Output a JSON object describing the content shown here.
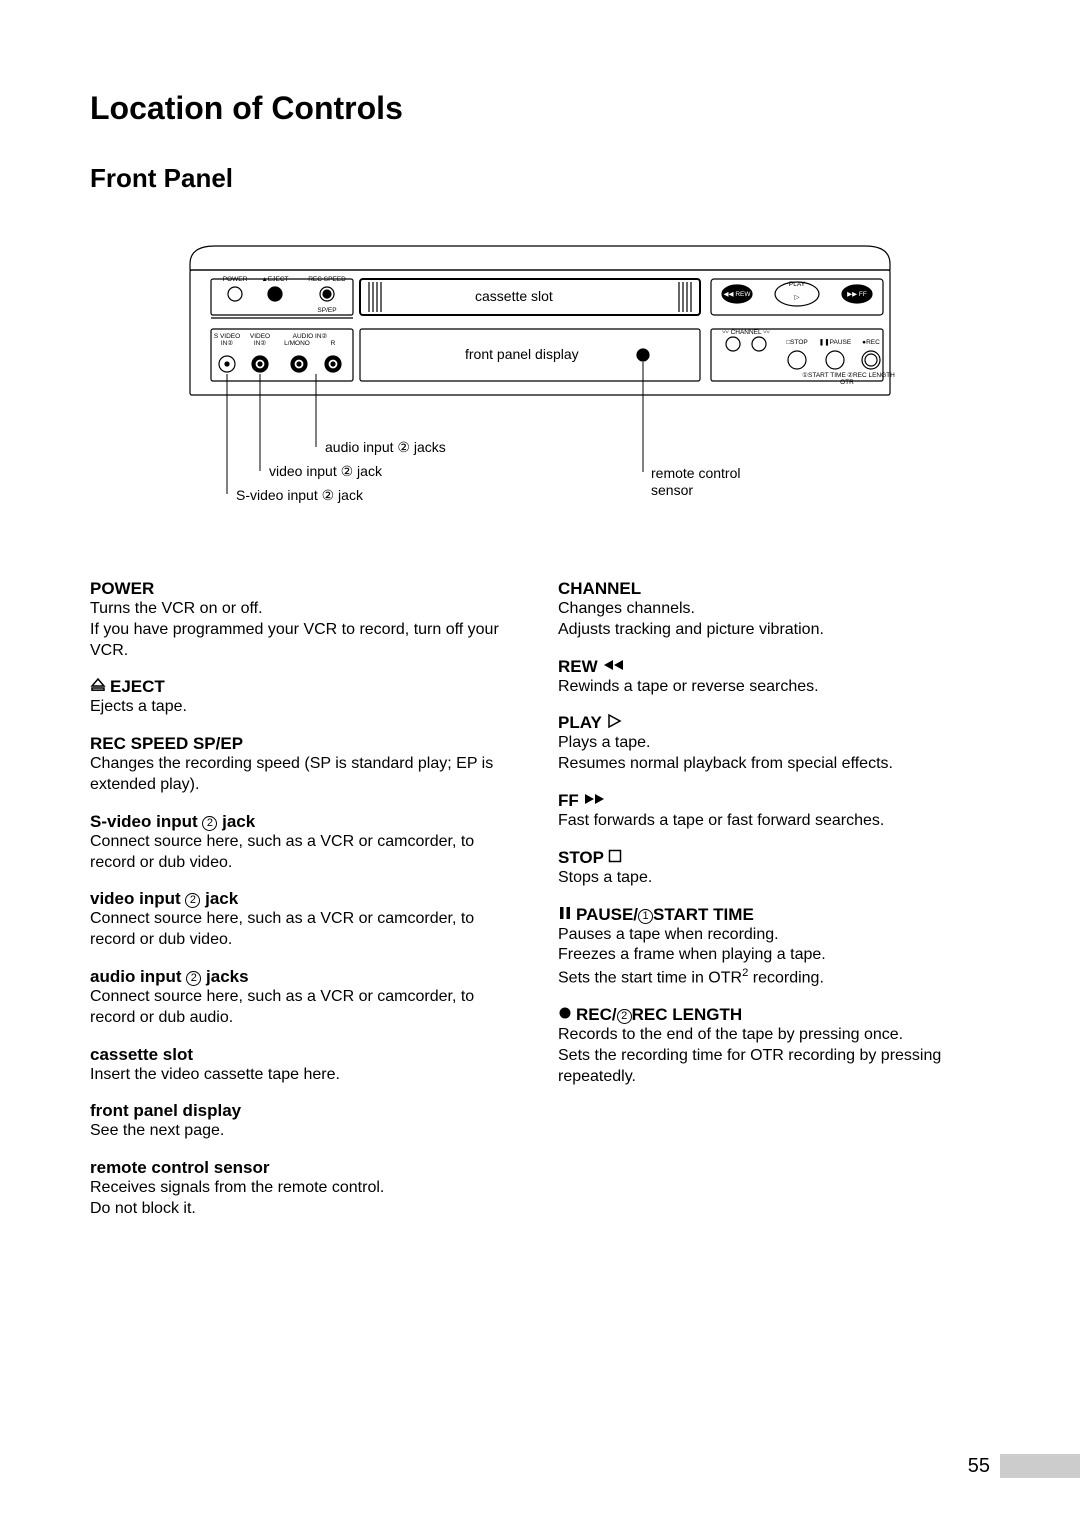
{
  "page_number": "55",
  "heading": "Location of Controls",
  "subheading": "Front Panel",
  "diagram": {
    "labels": {
      "cassette_slot": "cassette slot",
      "front_panel_display": "front panel display",
      "audio_input_jacks": "audio input ② jacks",
      "video_input_jack": "video input ② jack",
      "svideo_input_jack": "S-video input ② jack",
      "remote_sensor_l1": "remote control",
      "remote_sensor_l2": "sensor",
      "power": "POWER",
      "eject": "EJECT",
      "recspeed": "REC SPEED",
      "spep": "SP/EP",
      "svideo_in": "S VIDEO",
      "video_in": "VIDEO",
      "audio_in": "AUDIO IN②",
      "in2a": "IN②",
      "in2b": "IN②",
      "lmono": "L/MONO",
      "r": "R",
      "rew": "REW",
      "play": "PLAY",
      "ff": "FF",
      "channel": "CHANNEL",
      "stop": "STOP",
      "pause": "PAUSE",
      "rec": "REC",
      "start_time": "①START TIME",
      "rec_length": "②REC LENGTH",
      "otr": "OTR"
    },
    "colors": {
      "stroke": "#000000",
      "fill": "#ffffff",
      "text": "#000000"
    }
  },
  "left_col": [
    {
      "title_upper": "POWER",
      "desc": "Turns the VCR on or off.\nIf you have programmed your VCR to record, turn off your VCR."
    },
    {
      "symbol": "eject",
      "title_upper": "EJECT",
      "desc": "Ejects a tape."
    },
    {
      "title_upper": "REC SPEED  SP/EP",
      "desc": "Changes the recording speed (SP is standard play; EP is extended play)."
    },
    {
      "title_bold": "S-video input ② jack",
      "desc": "Connect source here, such as a VCR or camcorder, to record or dub video."
    },
    {
      "title_bold": "video input ② jack",
      "desc": "Connect source here, such as a VCR or camcorder, to record or dub video."
    },
    {
      "title_bold": "audio input ② jacks",
      "desc": "Connect source here, such as a VCR or camcorder, to record or dub audio."
    },
    {
      "title_bold": "cassette slot",
      "desc": "Insert the video cassette tape here."
    },
    {
      "title_bold": "front panel display",
      "desc": "See the next page."
    },
    {
      "title_bold": "remote control sensor",
      "desc": "Receives signals from the remote control.\nDo not block it."
    }
  ],
  "right_col": [
    {
      "title_upper": "CHANNEL",
      "desc": "Changes channels.\nAdjusts tracking and picture vibration."
    },
    {
      "title_upper": "REW",
      "symbol_after": "rew",
      "desc": "Rewinds a tape or reverse searches."
    },
    {
      "title_upper": "PLAY",
      "symbol_after": "play",
      "desc": "Plays a tape.\nResumes normal playback from special effects."
    },
    {
      "title_upper": "FF",
      "symbol_after": "ff",
      "desc": "Fast forwards a tape or fast forward searches."
    },
    {
      "title_upper": "STOP",
      "symbol_after": "stop",
      "desc": "Stops a tape."
    },
    {
      "symbol": "pause",
      "title_mixed": "PAUSE/①START TIME",
      "desc": "Pauses a tape when recording.\nFreezes a frame when playing a tape.\nSets the start time in OTR² recording."
    },
    {
      "symbol": "rec",
      "title_mixed": "REC/②REC LENGTH",
      "desc": "Records to the end of the tape by pressing once.\nSets the recording time for OTR recording by pressing repeatedly."
    }
  ]
}
